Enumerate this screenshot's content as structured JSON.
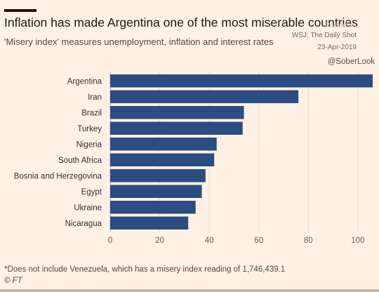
{
  "title": "Inflation has made Argentina one of the most miserable countries",
  "subtitle": "'Misery index' measures unemployment, inflation and interest rates",
  "watermark": {
    "line1": "Posted on",
    "line2": "WSJ: The Daily Shot",
    "date": "23-Apr-2019",
    "handle": "@SoberLook"
  },
  "footnote": "*Does not include Venezuela, which has a misery index reading of 1,746,439.1",
  "source": "© FT",
  "colors": {
    "bar": "#2b4d80",
    "background": "#fff1e5",
    "grid": "#e3d7cc"
  },
  "chart_data": {
    "type": "bar",
    "orientation": "horizontal",
    "categories": [
      "Argentina",
      "Iran",
      "Brazil",
      "Turkey",
      "Nigeria",
      "South Africa",
      "Bosnia and Herzegovina",
      "Egypt",
      "Ukraine",
      "Nicaragua"
    ],
    "values": [
      106,
      76,
      54,
      53.5,
      43,
      42,
      38.5,
      37,
      34.5,
      31.5
    ],
    "xlim": [
      0,
      106
    ],
    "xticks": [
      0,
      20,
      40,
      60,
      80,
      100
    ],
    "grid": true
  }
}
